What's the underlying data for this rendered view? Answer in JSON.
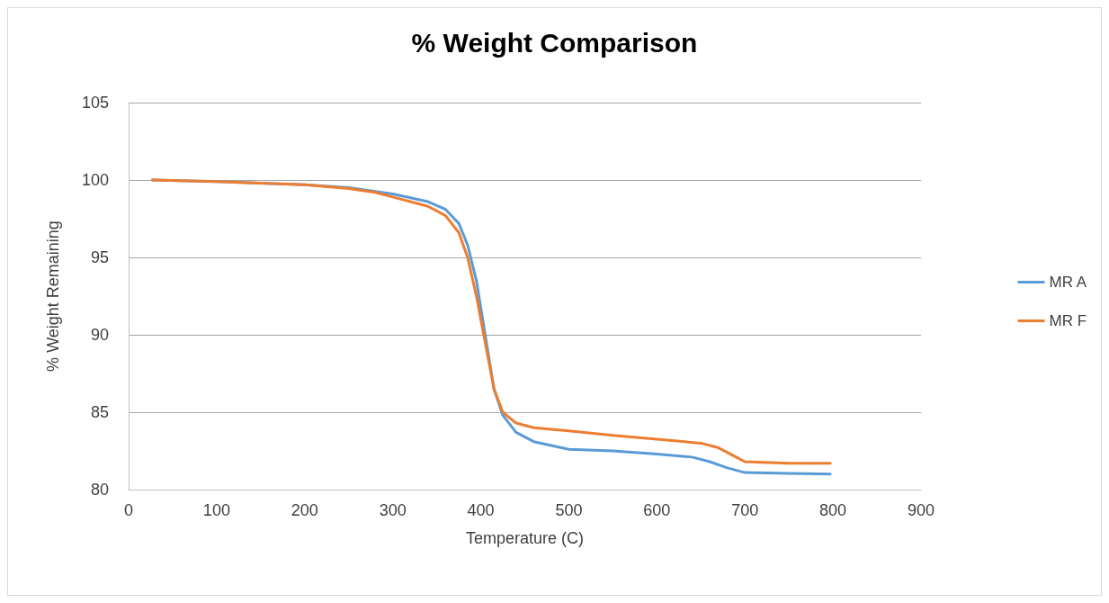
{
  "chart_data": {
    "type": "line",
    "title": "% Weight Comparison",
    "xlabel": "Temperature (C)",
    "ylabel": "% Weight Remaining",
    "xlim": [
      0,
      900
    ],
    "xticks": [
      0,
      100,
      200,
      300,
      400,
      500,
      600,
      700,
      800,
      900
    ],
    "ylim": [
      80,
      105
    ],
    "yticks": [
      80,
      85,
      90,
      95,
      100,
      105
    ],
    "grid": "y",
    "legend": "right",
    "marker": "none",
    "line_style": "solid",
    "series": [
      {
        "name": "MR A",
        "color": "#5b9bd5",
        "x": [
          27,
          100,
          200,
          250,
          300,
          340,
          360,
          375,
          385,
          395,
          405,
          415,
          425,
          440,
          460,
          500,
          550,
          600,
          640,
          660,
          680,
          700,
          750,
          797
        ],
        "values": [
          100,
          99.9,
          99.7,
          99.5,
          99.1,
          98.6,
          98.1,
          97.2,
          95.8,
          93.5,
          90,
          86.5,
          84.8,
          83.7,
          83.1,
          82.6,
          82.5,
          82.3,
          82.1,
          81.8,
          81.4,
          81.1,
          81.05,
          81
        ]
      },
      {
        "name": "MR F",
        "color": "#ed7d31",
        "x": [
          27,
          100,
          200,
          250,
          280,
          300,
          340,
          360,
          375,
          385,
          395,
          405,
          415,
          425,
          440,
          460,
          500,
          550,
          600,
          650,
          670,
          690,
          700,
          750,
          797
        ],
        "values": [
          100,
          99.9,
          99.7,
          99.45,
          99.2,
          98.9,
          98.3,
          97.7,
          96.6,
          95,
          92.5,
          89.5,
          86.5,
          85,
          84.3,
          84,
          83.8,
          83.5,
          83.25,
          83,
          82.7,
          82.1,
          81.8,
          81.7,
          81.7
        ]
      }
    ]
  }
}
